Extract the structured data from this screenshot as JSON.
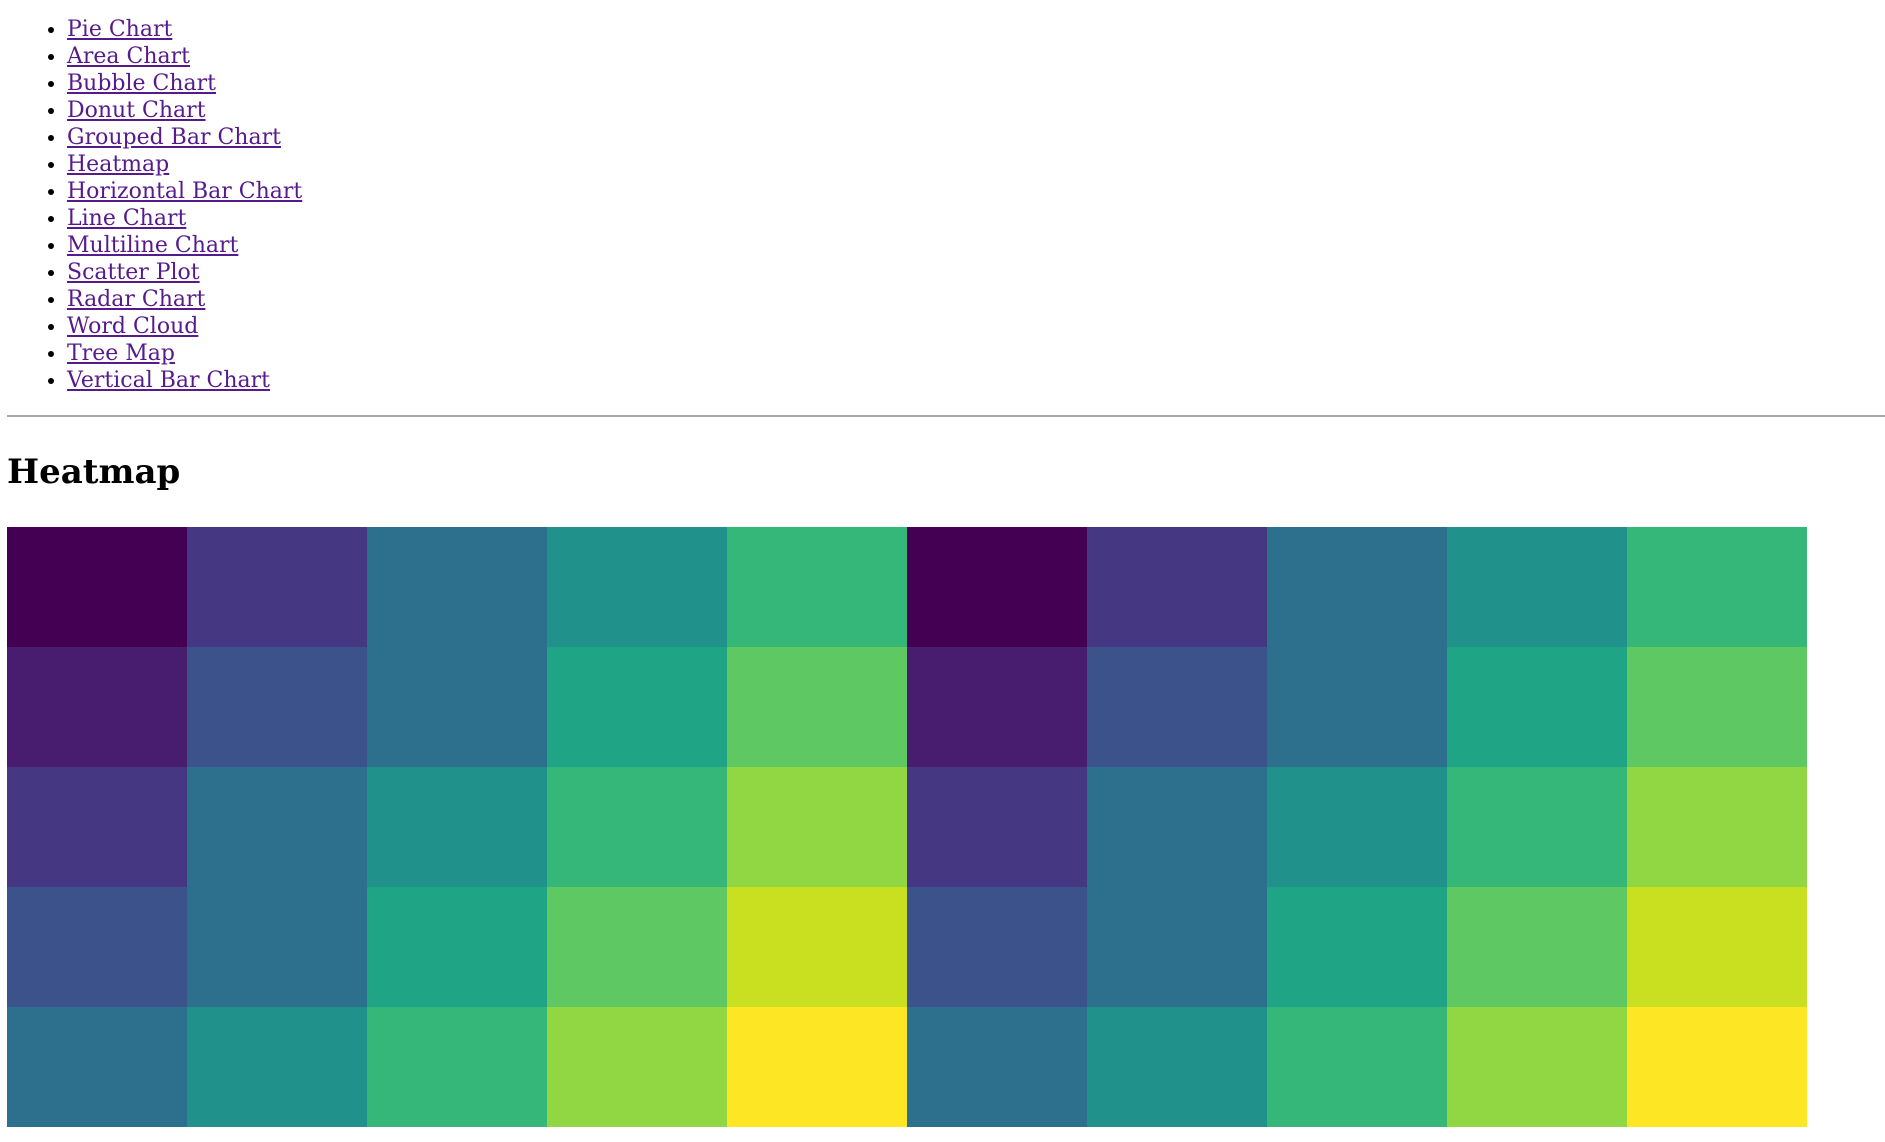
{
  "nav": {
    "items": [
      {
        "label": "Pie Chart"
      },
      {
        "label": "Area Chart"
      },
      {
        "label": "Bubble Chart"
      },
      {
        "label": "Donut Chart"
      },
      {
        "label": "Grouped Bar Chart"
      },
      {
        "label": "Heatmap"
      },
      {
        "label": "Horizontal Bar Chart"
      },
      {
        "label": "Line Chart"
      },
      {
        "label": "Multiline Chart"
      },
      {
        "label": "Scatter Plot"
      },
      {
        "label": "Radar Chart"
      },
      {
        "label": "Word Cloud"
      },
      {
        "label": "Tree Map"
      },
      {
        "label": "Vertical Bar Chart"
      }
    ],
    "link_color": "#551a8b"
  },
  "page": {
    "title": "Heatmap"
  },
  "chart_data": {
    "type": "heatmap",
    "title": "",
    "xlabel": "",
    "ylabel": "",
    "colormap": "viridis",
    "rows": 5,
    "cols": 10,
    "values": [
      [
        0,
        1,
        2,
        3,
        4,
        0,
        1,
        2,
        3,
        4
      ],
      [
        0.5,
        1.5,
        2,
        3.5,
        4.5,
        0.5,
        1.5,
        2,
        3.5,
        4.5
      ],
      [
        1,
        2,
        3,
        4,
        5,
        1,
        2,
        3,
        4,
        5
      ],
      [
        1.5,
        2,
        3.5,
        4.5,
        5.5,
        1.5,
        2,
        3.5,
        4.5,
        5.5
      ],
      [
        2,
        3,
        4,
        5,
        6,
        2,
        3,
        4,
        5,
        6
      ]
    ],
    "color_stops": {
      "0": "#440154",
      "0.5": "#481c6e",
      "1": "#453781",
      "1.5": "#3b528b",
      "2": "#2d708e",
      "3": "#21918c",
      "3.5": "#20a486",
      "4": "#35b779",
      "4.5": "#5ec962",
      "5": "#90d743",
      "5.5": "#c8e020",
      "6": "#fde725"
    },
    "grid": false,
    "legend": "none"
  }
}
